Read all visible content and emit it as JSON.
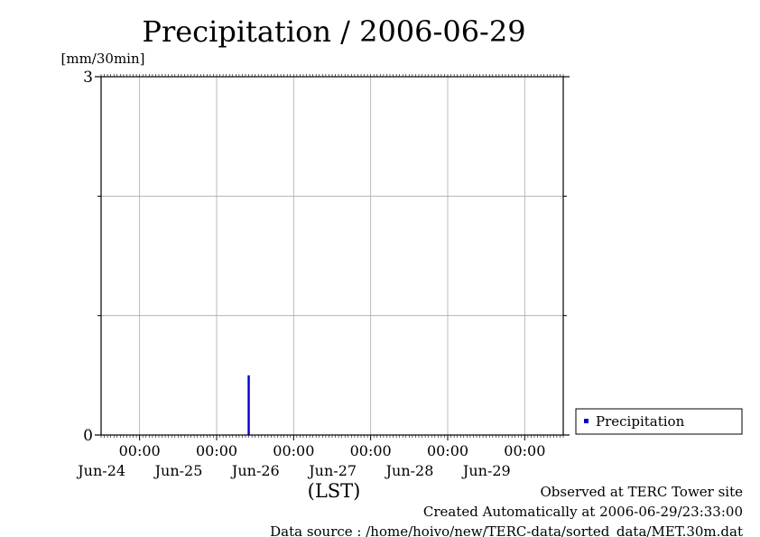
{
  "chart_data": {
    "type": "bar",
    "title": "Precipitation / 2006-06-29",
    "ylabel": "[mm/30min]",
    "xlabel": "(LST)",
    "ylim": [
      0,
      3
    ],
    "y_ticks": [
      0,
      3
    ],
    "y_grid_minor": [
      1,
      2
    ],
    "xlim": [
      "2006-06-23 12:00",
      "2006-06-29 12:00"
    ],
    "x_ticks": [
      {
        "time": "2006-06-24 00:00",
        "hour_label": "00:00",
        "day_label": "Jun-24"
      },
      {
        "time": "2006-06-25 00:00",
        "hour_label": "00:00",
        "day_label": "Jun-25"
      },
      {
        "time": "2006-06-26 00:00",
        "hour_label": "00:00",
        "day_label": "Jun-26"
      },
      {
        "time": "2006-06-27 00:00",
        "hour_label": "00:00",
        "day_label": "Jun-27"
      },
      {
        "time": "2006-06-28 00:00",
        "hour_label": "00:00",
        "day_label": "Jun-28"
      },
      {
        "time": "2006-06-29 00:00",
        "hour_label": "00:00",
        "day_label": "Jun-29"
      }
    ],
    "grid": true,
    "legend": {
      "placement": "right",
      "entries": [
        "Precipitation"
      ]
    },
    "series": [
      {
        "name": "Precipitation",
        "color": "#0000cc",
        "points": [
          {
            "time": "2006-06-25 10:00",
            "value": 0.5
          }
        ]
      }
    ]
  },
  "footer": {
    "observed": "Observed at TERC Tower site",
    "created": "Created Automatically at 2006-06-29/23:33:00",
    "source": "Data source : /home/hoivo/new/TERC-data/sorted_data/MET.30m.dat"
  }
}
